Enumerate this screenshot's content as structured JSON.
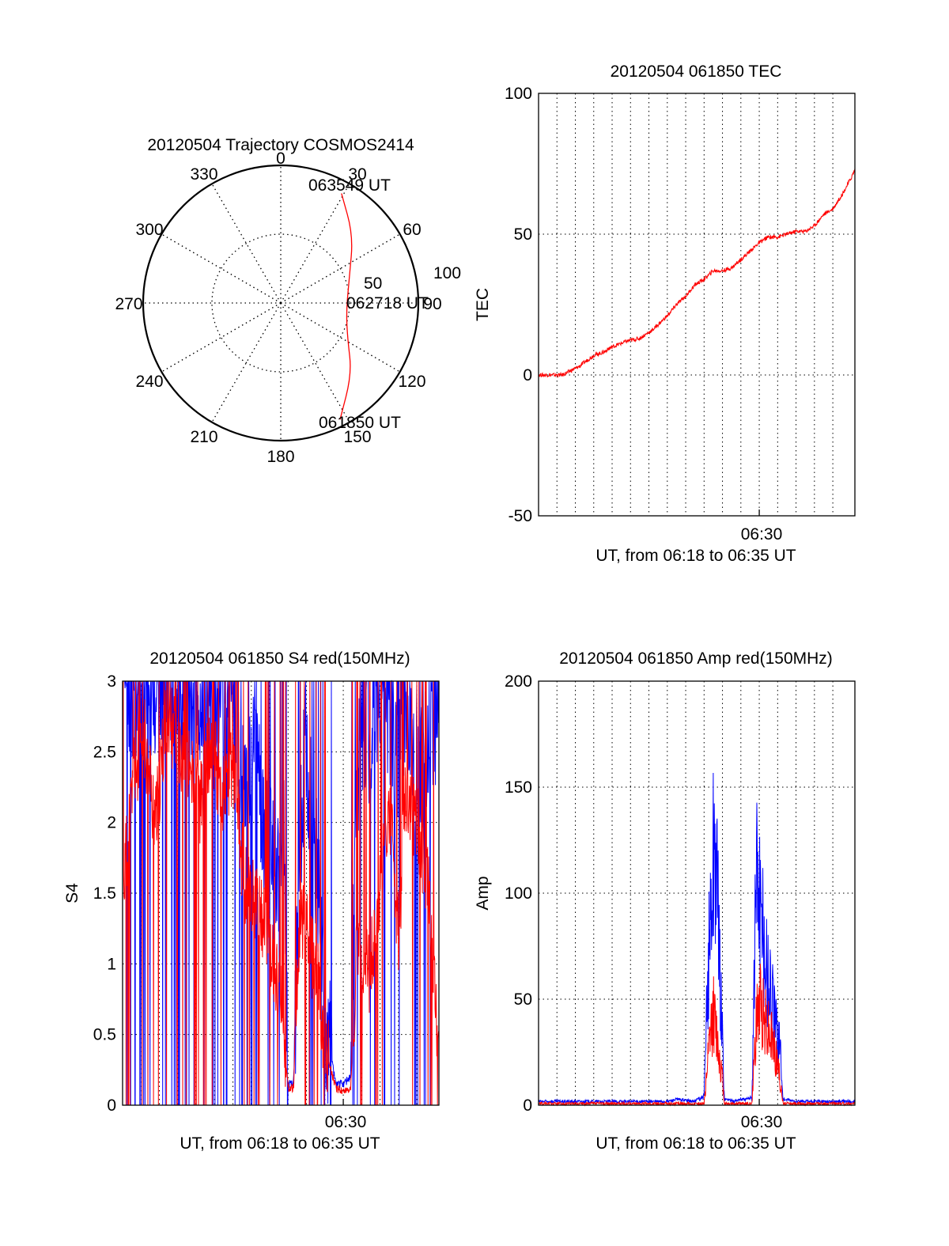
{
  "colors": {
    "red": "#ff0000",
    "blue": "#0000ff",
    "axis": "#000000"
  },
  "chart_data": [
    {
      "type": "polar-trajectory",
      "title": "20120504 Trajectory COSMOS2414",
      "angle_labels": [
        "0",
        "30",
        "60",
        "90",
        "120",
        "150",
        "180",
        "210",
        "240",
        "270",
        "300",
        "330"
      ],
      "radial_labels": [
        "50",
        "100"
      ],
      "rmax": 100,
      "trajectory": {
        "color": "red",
        "points": [
          {
            "az": 153,
            "r": 95
          },
          {
            "az": 135,
            "r": 73
          },
          {
            "az": 118,
            "r": 55
          },
          {
            "az": 97,
            "r": 48
          },
          {
            "az": 70,
            "r": 53
          },
          {
            "az": 47,
            "r": 72
          },
          {
            "az": 29,
            "r": 91
          }
        ],
        "start_label": "061850 UT",
        "mid_label": "062718 UT",
        "end_label": "063549 UT"
      }
    },
    {
      "type": "line",
      "title": "20120504 061850 TEC",
      "xlabel": "UT, from 06:18 to 06:35 UT",
      "ylabel": "TEC",
      "xlim": [
        0,
        17.2
      ],
      "ylim": [
        -50,
        100
      ],
      "yticks": [
        "-50",
        "0",
        "50",
        "100"
      ],
      "xtick_label": "06:30",
      "xtick_at": 12,
      "series": [
        {
          "color": "red",
          "x": [
            0.3,
            0.8,
            1.3,
            1.6,
            2.2,
            3.0,
            3.5,
            4.0,
            4.8,
            5.5,
            6.2,
            7.0,
            7.5,
            8.0,
            8.5,
            9.0,
            9.5,
            10.0,
            10.5,
            11.0,
            11.5,
            12.0,
            12.5,
            13.0,
            13.5,
            14.0,
            14.5,
            15.0,
            15.5,
            16.0,
            16.5,
            17.0,
            17.2
          ],
          "y": [
            0,
            0,
            0,
            1,
            3,
            7,
            8,
            10,
            12,
            13,
            16,
            21,
            25,
            28,
            32,
            34,
            37,
            37,
            38,
            41,
            44,
            47,
            49,
            49,
            50,
            51,
            51,
            53,
            57,
            59,
            64,
            70,
            73
          ]
        }
      ]
    },
    {
      "type": "line",
      "title": "20120504 061850 S4 red(150MHz)",
      "xlabel": "UT, from 06:18 to 06:35 UT",
      "ylabel": "S4",
      "xlim": [
        0,
        17.2
      ],
      "ylim": [
        0,
        3
      ],
      "yticks": [
        "0",
        "0.5",
        "1",
        "1.5",
        "2",
        "2.5",
        "3"
      ],
      "xtick_label": "06:30",
      "xtick_at": 12,
      "series": [
        {
          "color": "blue",
          "x": [
            0.0,
            0.6,
            1.2,
            1.8,
            2.4,
            3.0,
            3.6,
            4.2,
            4.8,
            5.4,
            6.0,
            6.6,
            7.2,
            7.8,
            8.4,
            8.8,
            9.0,
            9.3,
            9.6,
            9.9,
            10.2,
            10.6,
            11.0,
            11.6,
            12.0,
            12.4,
            12.7,
            13.0,
            13.6,
            14.2,
            14.8,
            15.4,
            16.0,
            16.6,
            17.2
          ],
          "y": [
            3.0,
            2.8,
            3.0,
            2.9,
            3.0,
            3.0,
            2.8,
            2.7,
            3.0,
            2.9,
            3.0,
            2.2,
            2.5,
            1.9,
            1.6,
            1.9,
            0.15,
            0.15,
            1.6,
            2.5,
            2.2,
            1.6,
            0.6,
            0.15,
            0.15,
            0.2,
            2.2,
            2.7,
            2.6,
            3.0,
            2.4,
            2.9,
            2.2,
            2.6,
            2.8
          ]
        },
        {
          "color": "red",
          "x": [
            0.0,
            0.6,
            1.2,
            1.8,
            2.4,
            3.0,
            3.6,
            4.2,
            4.8,
            5.4,
            6.0,
            6.6,
            7.2,
            7.8,
            8.2,
            8.6,
            9.0,
            9.3,
            9.6,
            9.9,
            10.2,
            10.6,
            11.0,
            11.6,
            12.0,
            12.4,
            12.7,
            13.0,
            13.4,
            13.8,
            14.2,
            14.6,
            15.0,
            15.4,
            16.0,
            16.6,
            17.2
          ],
          "y": [
            1.5,
            2.3,
            2.6,
            2.0,
            2.8,
            2.5,
            2.4,
            2.1,
            2.6,
            2.2,
            2.4,
            1.6,
            1.4,
            1.3,
            1.0,
            0.8,
            0.12,
            0.12,
            1.2,
            1.4,
            1.1,
            0.9,
            0.4,
            0.12,
            0.1,
            0.12,
            1.0,
            1.1,
            0.9,
            1.3,
            1.8,
            2.0,
            1.2,
            2.2,
            2.0,
            1.6,
            0.4
          ]
        }
      ]
    },
    {
      "type": "line",
      "title": "20120504 061850 Amp red(150MHz)",
      "xlabel": "UT, from 06:18 to 06:35 UT",
      "ylabel": "Amp",
      "xlim": [
        0,
        17.2
      ],
      "ylim": [
        0,
        200
      ],
      "yticks": [
        "0",
        "50",
        "100",
        "150",
        "200"
      ],
      "xtick_label": "06:30",
      "xtick_at": 12,
      "series": [
        {
          "color": "blue",
          "x": [
            0.0,
            4.0,
            7.0,
            7.5,
            8.5,
            9.0,
            9.3,
            9.6,
            9.8,
            10.0,
            10.1,
            10.3,
            10.6,
            10.9,
            11.3,
            11.6,
            11.8,
            11.9,
            12.1,
            12.4,
            12.7,
            12.9,
            13.1,
            13.3,
            14.0,
            17.2
          ],
          "y": [
            1,
            1,
            1,
            2,
            1,
            5,
            100,
            160,
            90,
            40,
            2,
            2,
            1,
            2,
            2,
            3,
            120,
            140,
            100,
            80,
            60,
            45,
            40,
            2,
            1,
            1
          ]
        },
        {
          "color": "red",
          "x": [
            0.0,
            9.0,
            9.3,
            9.5,
            9.8,
            10.0,
            10.1,
            11.6,
            11.8,
            12.0,
            12.3,
            12.7,
            13.0,
            13.3,
            17.2
          ],
          "y": [
            0,
            0,
            35,
            52,
            30,
            15,
            0,
            0,
            40,
            58,
            50,
            38,
            25,
            0,
            0
          ]
        }
      ]
    }
  ]
}
